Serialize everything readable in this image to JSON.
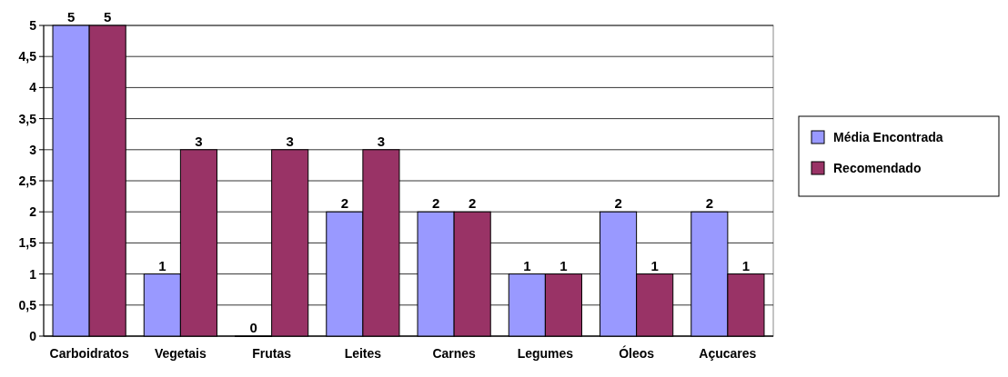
{
  "chart_data": {
    "type": "bar",
    "categories": [
      "Carboidratos",
      "Vegetais",
      "Frutas",
      "Leites",
      "Carnes",
      "Legumes",
      "Óleos",
      "Açucares"
    ],
    "series": [
      {
        "name": "Média Encontrada",
        "color": "#9999ff",
        "values": [
          5,
          1,
          0,
          2,
          2,
          1,
          2,
          2
        ]
      },
      {
        "name": "Recomendado",
        "color": "#993366",
        "values": [
          5,
          3,
          3,
          3,
          2,
          1,
          1,
          1
        ]
      }
    ],
    "ylim": [
      0,
      5
    ],
    "yticks": [
      0,
      {
        "value": 0.5,
        "label": "0,5"
      },
      1,
      {
        "value": 1.5,
        "label": "1,5"
      },
      2,
      {
        "value": 2.5,
        "label": "2,5"
      },
      3,
      {
        "value": 3.5,
        "label": "3,5"
      },
      4,
      {
        "value": 4.5,
        "label": "4,5"
      },
      5
    ],
    "grid": "y",
    "legend": "right",
    "data_labels": true
  }
}
